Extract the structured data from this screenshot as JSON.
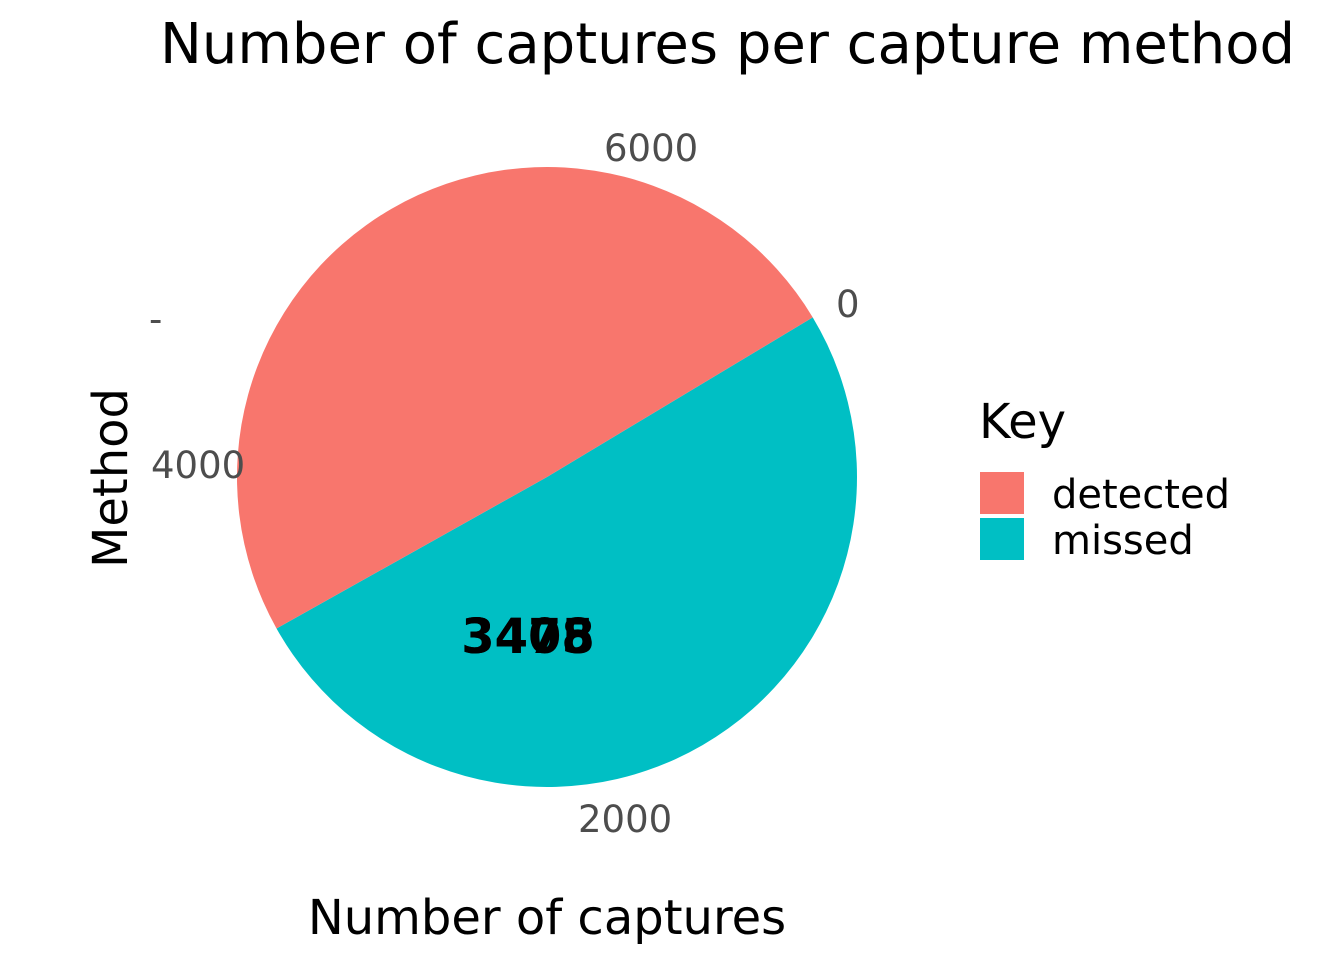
{
  "chart_data": {
    "type": "pie",
    "title": "Number of captures per capture method",
    "xlabel": "Number of captures",
    "ylabel": "Method",
    "categories": [
      "detected",
      "missed"
    ],
    "values": [
      3408,
      3475
    ],
    "data_labels": [
      "3408",
      "3475"
    ],
    "colors": [
      "#F8766D",
      "#00BFC4"
    ],
    "theta_ticks": [
      "0",
      "2000",
      "4000",
      "6000"
    ],
    "y_ticks": [
      "-"
    ],
    "legend": {
      "title": "Key",
      "position": "right",
      "items": [
        {
          "label": "detected",
          "color": "#F8766D"
        },
        {
          "label": "missed",
          "color": "#00BFC4"
        }
      ]
    },
    "grid": false
  }
}
